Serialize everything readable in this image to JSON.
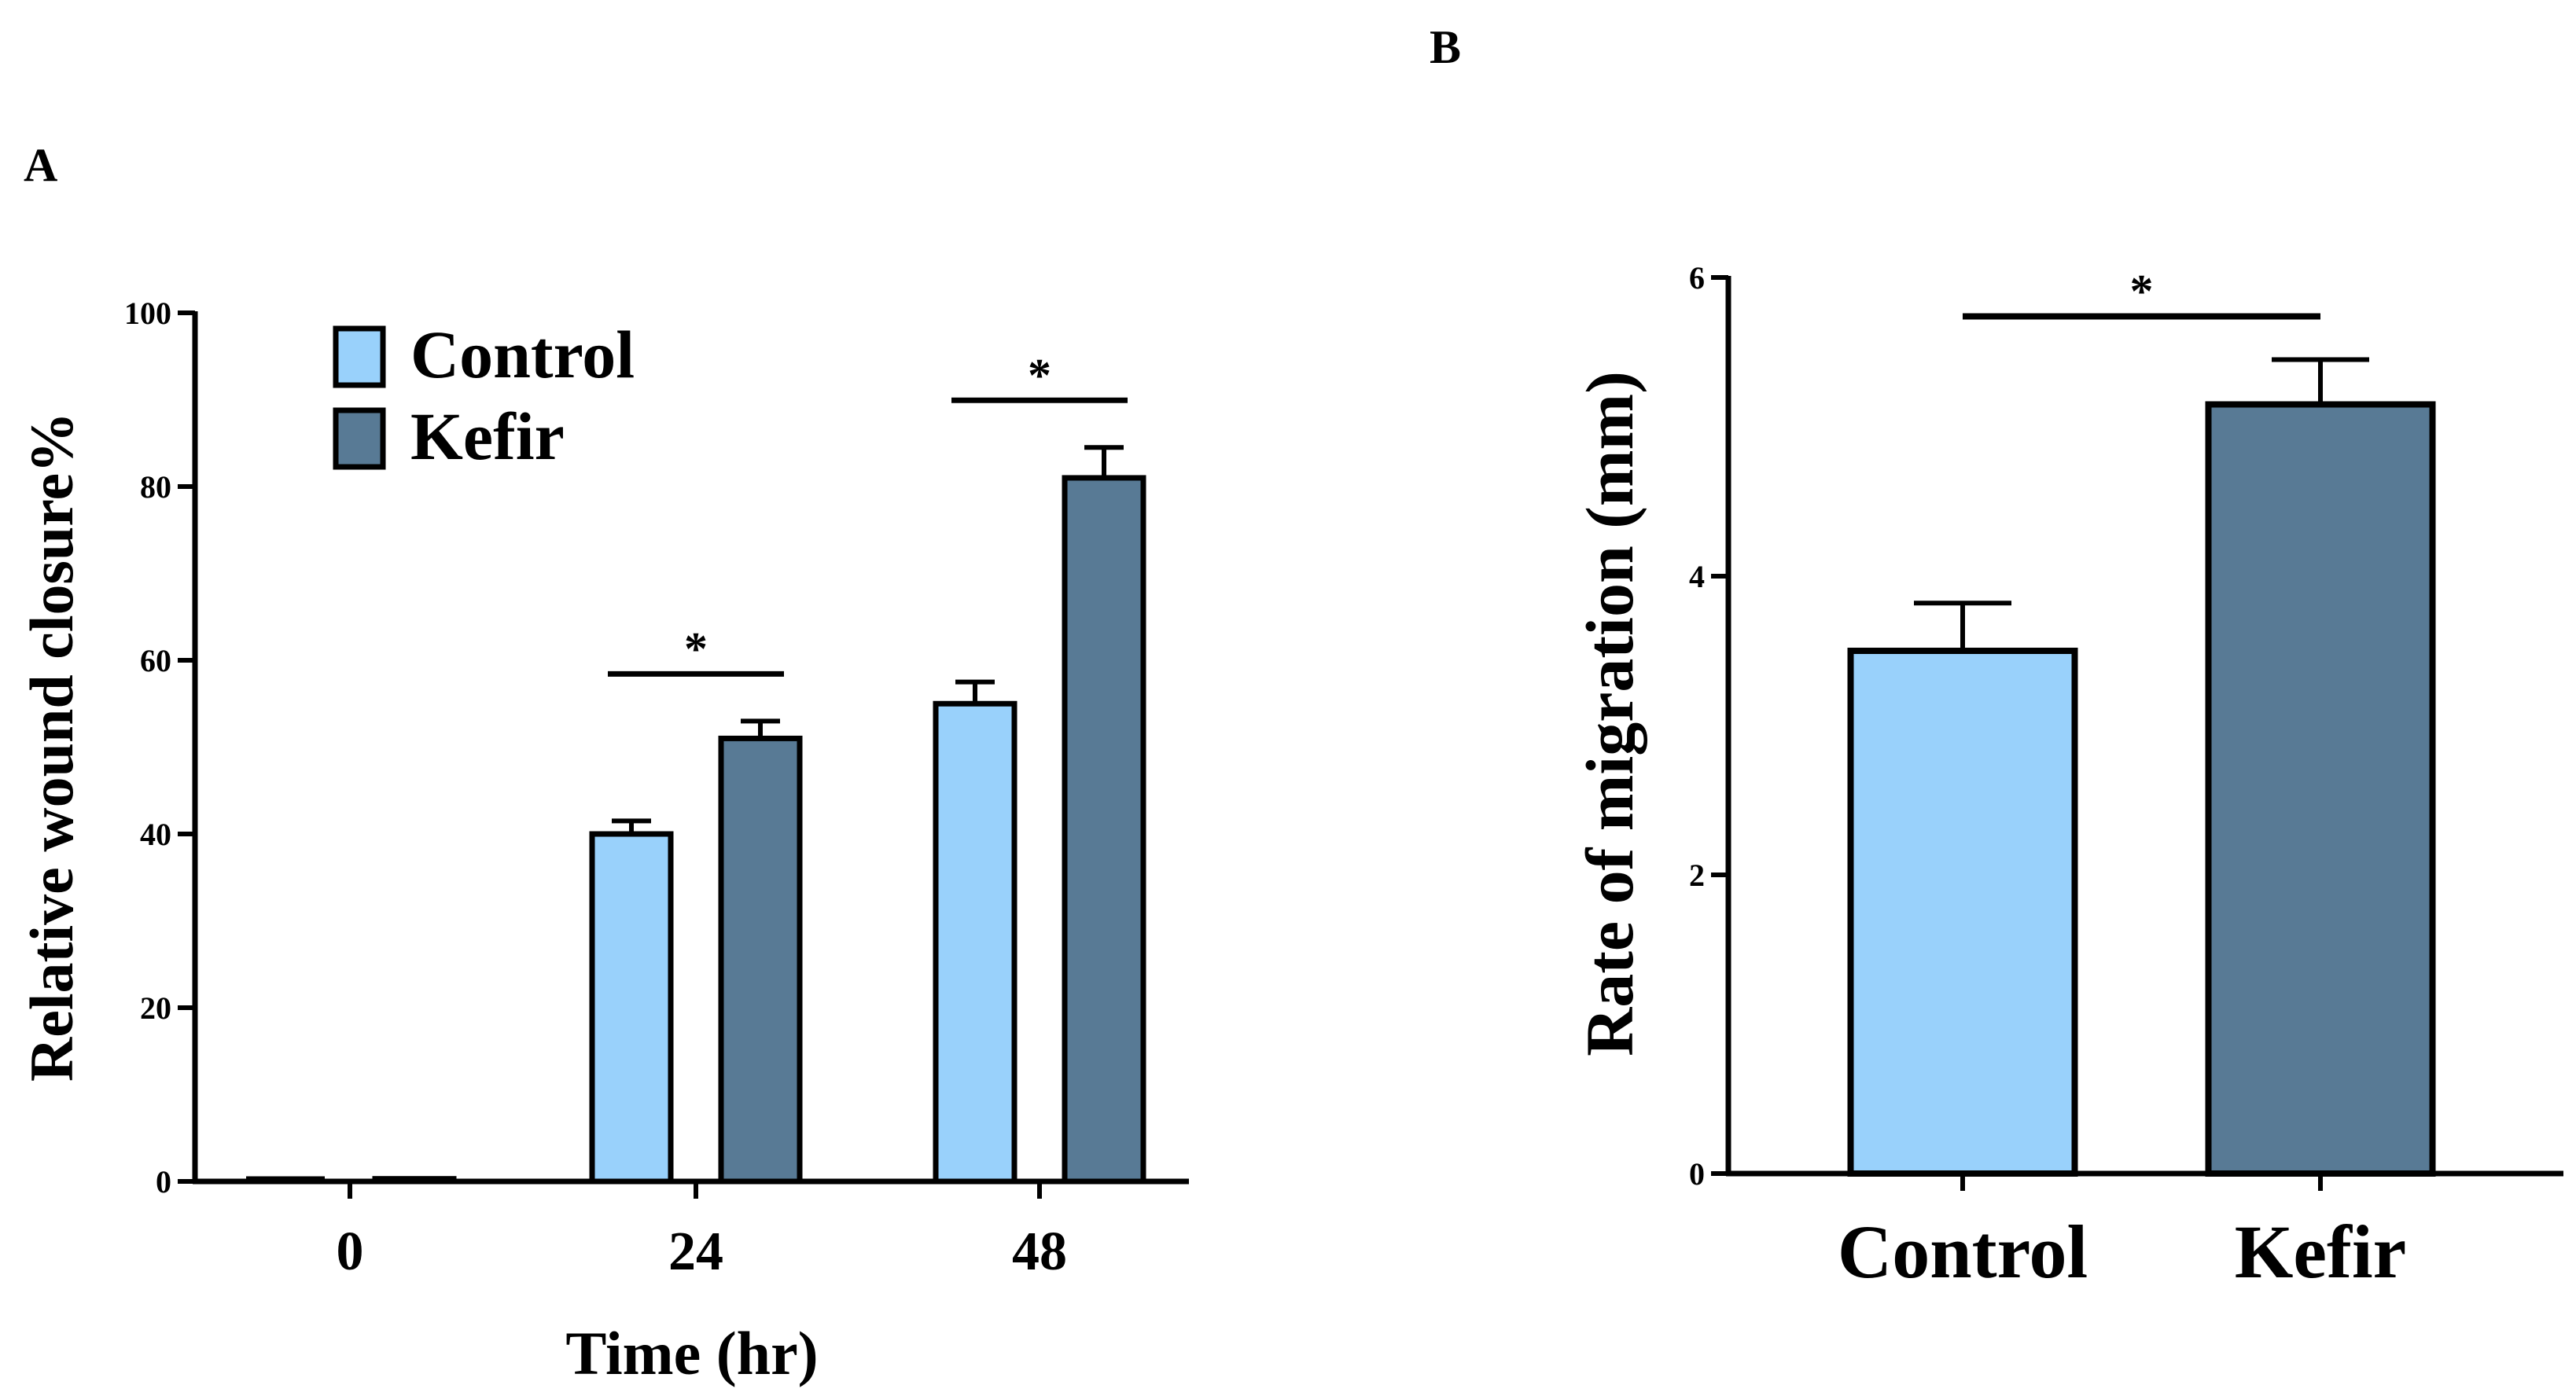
{
  "colors": {
    "control": "#99d1fb",
    "kefir": "#587a95",
    "ink": "#000000"
  },
  "chart_data": [
    {
      "panel_label": "A",
      "type": "bar",
      "title": "",
      "xlabel": "Time (hr)",
      "ylabel": "Relative wound closure%",
      "categories": [
        "0",
        "24",
        "48"
      ],
      "ylim": [
        0,
        100
      ],
      "yticks": [
        0,
        20,
        40,
        60,
        80,
        100
      ],
      "legend": {
        "position": "top-left",
        "entries": [
          "Control",
          "Kefir"
        ]
      },
      "series": [
        {
          "name": "Control",
          "values": [
            0,
            40,
            55
          ],
          "errors": [
            0,
            1.5,
            2.5
          ]
        },
        {
          "name": "Kefir",
          "values": [
            0.3,
            51,
            81
          ],
          "errors": [
            0,
            2,
            3.5
          ]
        }
      ],
      "significance": [
        {
          "category": "24",
          "label": "*"
        },
        {
          "category": "48",
          "label": "*"
        }
      ]
    },
    {
      "panel_label": "B",
      "type": "bar",
      "title": "",
      "xlabel": "",
      "ylabel": "Rate of migration (mm)",
      "categories": [
        "Control",
        "Kefir"
      ],
      "ylim": [
        0,
        6
      ],
      "yticks": [
        0,
        2,
        4,
        6
      ],
      "values": [
        3.5,
        5.15
      ],
      "errors": [
        0.32,
        0.3
      ],
      "significance": [
        {
          "from": "Control",
          "to": "Kefir",
          "label": "*"
        }
      ]
    }
  ]
}
